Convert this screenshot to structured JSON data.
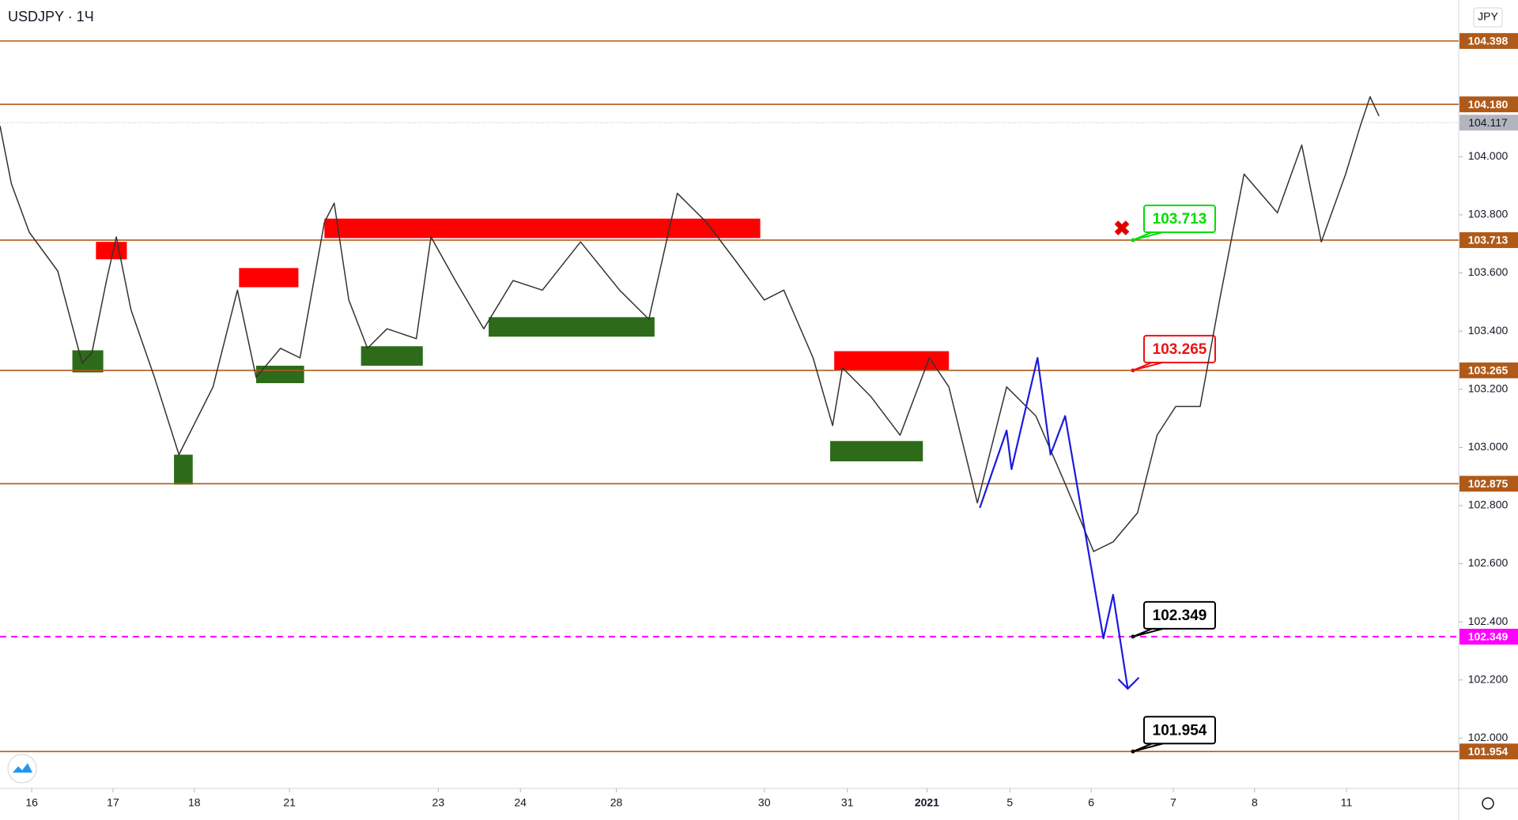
{
  "chart_data": {
    "type": "line",
    "title": "USDJPY · 1Ч",
    "currency": "JPY",
    "xlim": [
      0,
      17.94
    ],
    "ylim": [
      101.827,
      104.539
    ],
    "xticks": [
      {
        "value": 0.39,
        "label": "16"
      },
      {
        "value": 1.39,
        "label": "17"
      },
      {
        "value": 2.39,
        "label": "18"
      },
      {
        "value": 3.56,
        "label": "21"
      },
      {
        "value": 5.39,
        "label": "23"
      },
      {
        "value": 6.4,
        "label": "24"
      },
      {
        "value": 7.58,
        "label": "28"
      },
      {
        "value": 9.4,
        "label": "30"
      },
      {
        "value": 10.42,
        "label": "31"
      },
      {
        "value": 11.4,
        "label": "2021"
      },
      {
        "value": 12.42,
        "label": "5"
      },
      {
        "value": 13.42,
        "label": "6"
      },
      {
        "value": 14.43,
        "label": "7"
      },
      {
        "value": 15.43,
        "label": "8"
      },
      {
        "value": 16.56,
        "label": "11"
      }
    ],
    "yticks": [
      {
        "value": 102,
        "label": "102.000"
      },
      {
        "value": 102.2,
        "label": "102.200"
      },
      {
        "value": 102.4,
        "label": "102.400"
      },
      {
        "value": 102.6,
        "label": "102.600"
      },
      {
        "value": 102.8,
        "label": "102.800"
      },
      {
        "value": 103,
        "label": "103.000"
      },
      {
        "value": 103.2,
        "label": "103.200"
      },
      {
        "value": 103.4,
        "label": "103.400"
      },
      {
        "value": 103.6,
        "label": "103.600"
      },
      {
        "value": 103.8,
        "label": "103.800"
      },
      {
        "value": 104,
        "label": "104.000"
      }
    ],
    "series": [
      {
        "color": "#333333",
        "x": [
          0,
          0.14,
          0.36,
          0.71,
          1.01,
          1.13,
          1.31,
          1.43,
          1.61,
          1.9,
          2.2,
          2.38,
          2.62,
          2.92,
          3.15,
          3.45,
          3.69,
          3.99,
          4.11,
          4.29,
          4.52,
          4.76,
          5.12,
          5.3,
          5.6,
          5.95,
          6.31,
          6.67,
          7.14,
          7.62,
          7.98,
          8.33,
          8.69,
          9.05,
          9.4,
          9.64,
          10.0,
          10.24,
          10.36,
          10.71,
          11.07,
          11.43,
          11.67,
          12.02,
          12.38,
          12.74,
          13.1,
          13.45,
          13.69,
          13.99,
          14.23,
          14.46,
          14.76,
          15.0,
          15.3,
          15.71,
          16.01,
          16.25,
          16.55,
          16.73,
          16.85,
          16.96
        ],
        "values": [
          104.106,
          103.907,
          103.74,
          103.607,
          103.29,
          103.325,
          103.574,
          103.724,
          103.474,
          103.241,
          102.975,
          103.075,
          103.208,
          103.541,
          103.241,
          103.341,
          103.308,
          103.774,
          103.84,
          103.507,
          103.341,
          103.408,
          103.374,
          103.724,
          103.574,
          103.408,
          103.574,
          103.541,
          103.707,
          103.541,
          103.441,
          103.874,
          103.774,
          103.641,
          103.507,
          103.541,
          103.308,
          103.075,
          103.274,
          103.175,
          103.042,
          103.308,
          103.208,
          102.809,
          103.208,
          103.108,
          102.875,
          102.642,
          102.675,
          102.775,
          103.042,
          103.141,
          103.141,
          103.507,
          103.94,
          103.807,
          104.04,
          103.707,
          103.94,
          104.106,
          104.206,
          104.14
        ]
      },
      {
        "color": "#1a1adf",
        "x": [
          12.05,
          12.38,
          12.44,
          12.76,
          12.92,
          13.1,
          13.57,
          13.69,
          13.87
        ],
        "values": [
          102.792,
          103.058,
          102.925,
          103.308,
          102.975,
          103.108,
          102.343,
          102.493,
          102.17
        ]
      }
    ],
    "zones": [
      {
        "color": "#ff0000",
        "x": [
          1.18,
          1.56
        ],
        "values": [
          103.707,
          103.647
        ]
      },
      {
        "color": "#ff0000",
        "x": [
          2.94,
          3.67
        ],
        "values": [
          103.617,
          103.551
        ]
      },
      {
        "color": "#ff0000",
        "x": [
          3.99,
          9.35
        ],
        "values": [
          103.787,
          103.72
        ]
      },
      {
        "color": "#ff0000",
        "x": [
          10.26,
          11.67
        ],
        "values": [
          103.331,
          103.265
        ]
      },
      {
        "color": "#2d6b1a",
        "x": [
          0.89,
          1.27
        ],
        "values": [
          103.334,
          103.258
        ]
      },
      {
        "color": "#2d6b1a",
        "x": [
          2.14,
          2.37
        ],
        "values": [
          102.975,
          102.872
        ]
      },
      {
        "color": "#2d6b1a",
        "x": [
          3.15,
          3.74
        ],
        "values": [
          103.281,
          103.221
        ]
      },
      {
        "color": "#2d6b1a",
        "x": [
          4.44,
          5.2
        ],
        "values": [
          103.348,
          103.281
        ]
      },
      {
        "color": "#2d6b1a",
        "x": [
          6.01,
          8.05
        ],
        "values": [
          103.448,
          103.381
        ]
      },
      {
        "color": "#2d6b1a",
        "x": [
          10.21,
          11.35
        ],
        "values": [
          103.022,
          102.952
        ]
      }
    ],
    "levels": [
      {
        "value": 104.398,
        "color": "#b05a1a"
      },
      {
        "value": 104.18,
        "label": "104.180",
        "color": "#b05a1a"
      },
      {
        "value": 103.713,
        "color": "#b05a1a",
        "callout_color": "#00dd00"
      },
      {
        "value": 103.265,
        "color": "#b05a1a",
        "callout_color": "#ee1111"
      },
      {
        "value": 102.875,
        "color": "#b05a1a"
      },
      {
        "value": 102.349,
        "color": "#ff00ff",
        "dashed": true,
        "callout_color": "#000000"
      },
      {
        "value": 101.954,
        "color": "#b05a1a",
        "callout_color": "#000000"
      }
    ],
    "last_price": {
      "value": 104.117,
      "color": "#b2b5be"
    }
  }
}
